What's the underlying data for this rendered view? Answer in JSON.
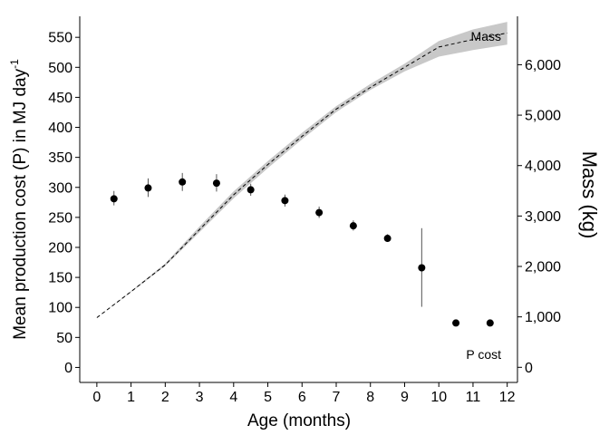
{
  "chart_data": {
    "type": "scatter",
    "xlabel": "Age (months)",
    "ylabel_left": "Mean production cost (P) in MJ day",
    "ylabel_left_superscript": "-1",
    "ylabel_right": "Mass (kg)",
    "x_ticks": [
      0,
      1,
      2,
      3,
      4,
      5,
      6,
      7,
      8,
      9,
      10,
      11,
      12
    ],
    "y_left_ticks": [
      0,
      50,
      100,
      150,
      200,
      250,
      300,
      350,
      400,
      450,
      500,
      550
    ],
    "y_right_ticks": [
      0,
      1000,
      2000,
      3000,
      4000,
      5000,
      6000
    ],
    "y_right_tick_labels": [
      "0",
      "1,000",
      "2,000",
      "3,000",
      "4,000",
      "5,000",
      "6,000"
    ],
    "xlim": [
      -0.5,
      12.3
    ],
    "ylim_left": [
      -25,
      585
    ],
    "ylim_right": [
      -300,
      6960
    ],
    "annotations": {
      "mass": "Mass",
      "pcost": "P cost"
    },
    "p_cost": {
      "x": [
        0.5,
        1.5,
        2.5,
        3.5,
        4.5,
        5.5,
        6.5,
        7.5,
        8.5,
        9.5,
        10.5,
        11.5
      ],
      "y": [
        281,
        299,
        309,
        307,
        296,
        278,
        258,
        236,
        215,
        166,
        74,
        74
      ],
      "low": [
        270,
        284,
        294,
        293,
        286,
        268,
        249,
        228,
        209,
        101,
        72,
        72
      ],
      "high": [
        294,
        315,
        324,
        322,
        306,
        288,
        268,
        245,
        222,
        232,
        76,
        76
      ]
    },
    "mass": {
      "x": [
        0,
        1,
        2,
        3,
        4,
        5,
        6,
        7,
        8,
        9,
        10,
        11,
        12
      ],
      "y": [
        985,
        1500,
        2030,
        2730,
        3420,
        4020,
        4580,
        5120,
        5550,
        5950,
        6350,
        6500,
        6630
      ],
      "low": [
        985,
        1490,
        2010,
        2680,
        3350,
        3950,
        4520,
        5060,
        5500,
        5870,
        6160,
        6290,
        6400
      ],
      "high": [
        985,
        1510,
        2060,
        2790,
        3490,
        4090,
        4650,
        5180,
        5620,
        6020,
        6470,
        6700,
        6850
      ]
    }
  }
}
